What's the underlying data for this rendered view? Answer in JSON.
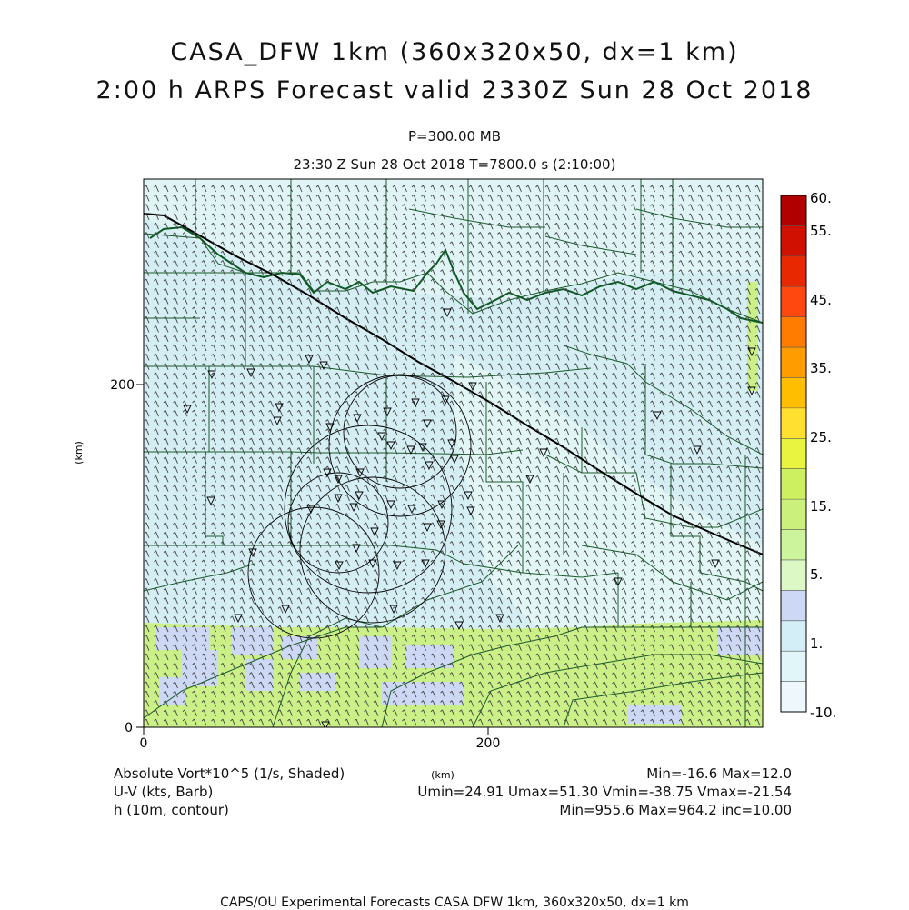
{
  "title": {
    "line1": "CASA_DFW 1km (360x320x50, dx=1 km)",
    "line2": "2:00 h ARPS Forecast valid 2330Z Sun 28 Oct 2018"
  },
  "subtitle": {
    "level": "P=300.00 MB",
    "time": "23:30 Z Sun 28 Oct 2018   T=7800.0 s (2:10:00)"
  },
  "axes": {
    "x_ticks": [
      "0",
      "200"
    ],
    "y_ticks": [
      "0",
      "200"
    ],
    "x_unit": "(km)",
    "y_unit": "(km)"
  },
  "colorbar": {
    "labels": [
      "60.",
      "55.",
      "45.",
      "35.",
      "25.",
      "15.",
      "5.",
      "1.",
      "-10."
    ],
    "colors": [
      "#b00000",
      "#d01000",
      "#e82800",
      "#ff4810",
      "#ff7c00",
      "#ff9c00",
      "#ffbe00",
      "#ffe030",
      "#e8f440",
      "#ccf060",
      "#ccf07c",
      "#ccf49c",
      "#dcf8c4",
      "#ccd8f4",
      "#d4eef8",
      "#e0f6f8",
      "#eef8fc"
    ]
  },
  "legend": {
    "field1": "Absolute Vort*10^5 (1/s, Shaded)",
    "field1_stats": "Min=-16.6 Max=12.0",
    "field2": "U-V (kts, Barb)",
    "field2_stats": "Umin=24.91 Umax=51.30 Vmin=-38.75 Vmax=-21.54",
    "field3": "h (10m, contour)",
    "field3_stats": "Min=955.6 Max=964.2 inc=10.00"
  },
  "footer": "CAPS/OU Experimental Forecasts  CASA DFW 1km, 360x320x50, dx=1 km",
  "map_colors": {
    "background": "#d4eef4",
    "light_region": "#e2f6f6",
    "green_band": "#ccf088",
    "blue_patch": "#ccd8f4",
    "county_lines": "#1a5a2a",
    "contour": "#000000"
  }
}
